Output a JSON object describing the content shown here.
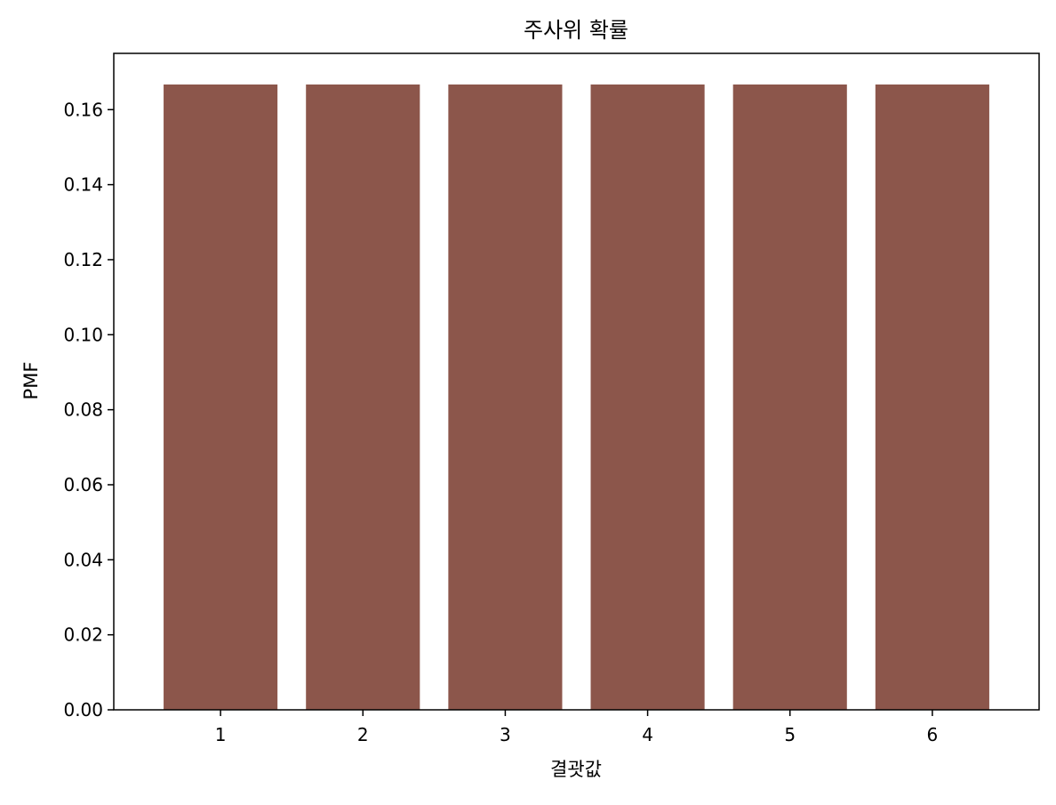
{
  "chart_data": {
    "type": "bar",
    "title": "주사위 확률",
    "xlabel": "결괏값",
    "ylabel": "PMF",
    "categories": [
      "1",
      "2",
      "3",
      "4",
      "5",
      "6"
    ],
    "values": [
      0.1667,
      0.1667,
      0.1667,
      0.1667,
      0.1667,
      0.1667
    ],
    "ylim": [
      0,
      0.175
    ],
    "yticks": [
      0.0,
      0.02,
      0.04,
      0.06,
      0.08,
      0.1,
      0.12,
      0.14,
      0.16
    ],
    "ytick_labels": [
      "0.00",
      "0.02",
      "0.04",
      "0.06",
      "0.08",
      "0.10",
      "0.12",
      "0.14",
      "0.16"
    ],
    "grid": false,
    "colors": {
      "bar": "#8c564b",
      "axes": "#000000"
    }
  }
}
